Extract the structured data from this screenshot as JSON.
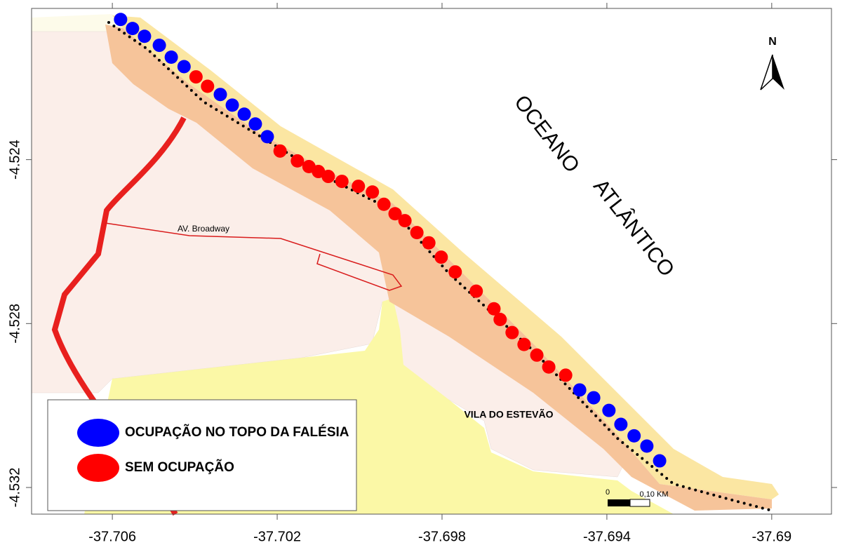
{
  "map": {
    "xlim": [
      -37.70796,
      -37.68855
    ],
    "ylim": [
      -4.53265,
      -4.52031
    ],
    "xticks": [
      -37.706,
      -37.702,
      -37.698,
      -37.694,
      -37.69
    ],
    "yticks": [
      -4.524,
      -4.528,
      -4.532
    ],
    "series": [
      {
        "name": "OCUPAÇÃO NO TOPO DA FALÉSIA",
        "color": "#0000ff",
        "x": [
          -37.7058,
          -37.70551,
          -37.70522,
          -37.70486,
          -37.70457,
          -37.70426,
          -37.70338,
          -37.70309,
          -37.7028,
          -37.70253,
          -37.70224,
          -37.69466,
          -37.69432,
          -37.69395,
          -37.69366,
          -37.69334,
          -37.69303,
          -37.69272
        ],
        "y": [
          -4.52058,
          -4.5208,
          -4.52099,
          -4.52121,
          -4.5215,
          -4.52173,
          -4.52241,
          -4.52267,
          -4.52289,
          -4.52313,
          -4.52344,
          -4.52962,
          -4.52981,
          -4.53012,
          -4.53046,
          -4.53074,
          -4.53099,
          -4.53135
        ]
      },
      {
        "name": "SEM OCUPAÇÃO",
        "color": "#ff0000",
        "x": [
          -37.70397,
          -37.70369,
          -37.70193,
          -37.70151,
          -37.70123,
          -37.701,
          -37.70076,
          -37.70043,
          -37.70003,
          -37.69969,
          -37.69941,
          -37.69914,
          -37.6989,
          -37.69861,
          -37.69832,
          -37.69802,
          -37.69768,
          -37.69717,
          -37.69674,
          -37.69659,
          -37.6963,
          -37.69601,
          -37.6957,
          -37.69541,
          -37.695
        ],
        "y": [
          -4.52198,
          -4.52221,
          -4.52379,
          -4.52403,
          -4.52417,
          -4.52429,
          -4.52441,
          -4.52453,
          -4.52465,
          -4.52479,
          -4.52509,
          -4.52532,
          -4.52549,
          -4.52578,
          -4.52603,
          -4.52638,
          -4.52674,
          -4.52721,
          -4.52764,
          -4.5279,
          -4.52822,
          -4.52851,
          -4.52877,
          -4.52906,
          -4.52926
        ]
      }
    ],
    "labels": {
      "avenue": "AV. Broadway",
      "village": "VILA DO ESTEVÃO",
      "ocean_1": "OCEANO",
      "ocean_2": "ATLÂNTICO"
    },
    "north": "N",
    "scale_bar": {
      "start": "0",
      "end": "0,10 KM"
    }
  }
}
